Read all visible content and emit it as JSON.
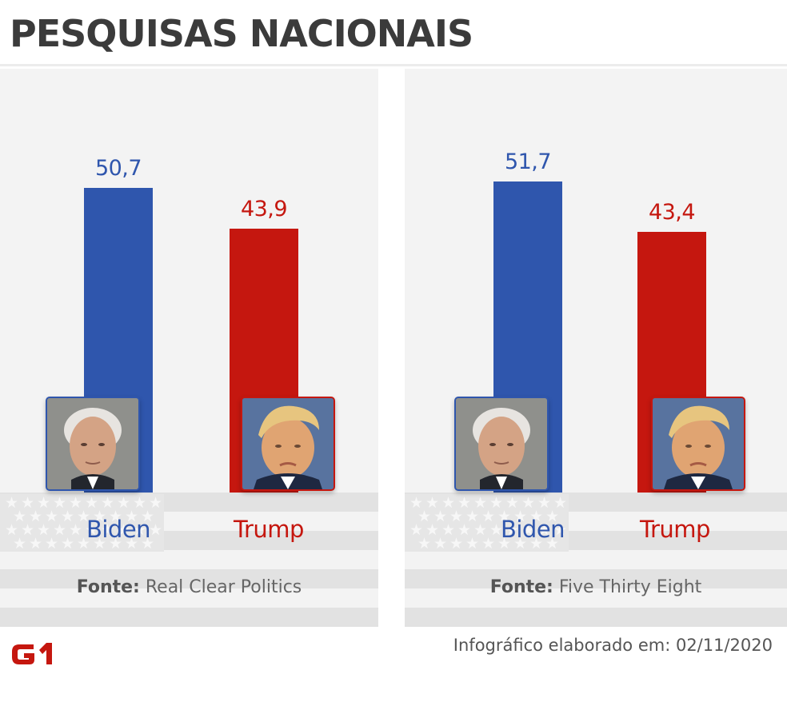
{
  "title": "PESQUISAS NACIONAIS",
  "colors": {
    "biden": "#2f56ad",
    "trump": "#c5170f"
  },
  "chart_data": [
    {
      "type": "bar",
      "categories": [
        "Biden",
        "Trump"
      ],
      "values": [
        50.7,
        43.9
      ],
      "value_labels": [
        "50,7",
        "43,9"
      ],
      "source_label": "Fonte:",
      "source_name": "Real Clear Politics"
    },
    {
      "type": "bar",
      "categories": [
        "Biden",
        "Trump"
      ],
      "values": [
        51.7,
        43.4
      ],
      "value_labels": [
        "51,7",
        "43,4"
      ],
      "source_label": "Fonte:",
      "source_name": "Five Thirty Eight"
    }
  ],
  "footer": {
    "logo": "g1-logo",
    "text": "Infográfico elaborado em: 02/11/2020"
  }
}
